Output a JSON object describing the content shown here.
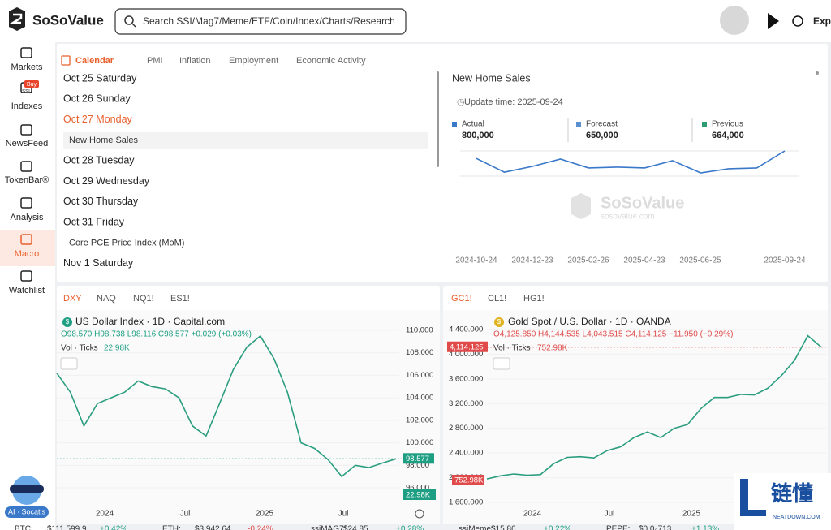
{
  "header": {
    "logo": "SoSoValue",
    "search_placeholder": "Search SSI/Mag7/Meme/ETF/Coin/Index/Charts/Research",
    "right_label": "Expa"
  },
  "sidebar": {
    "items": [
      {
        "label": "Markets"
      },
      {
        "label": "Indexes",
        "badge": "Buy",
        "icon_text": "SSI"
      },
      {
        "label": "NewsFeed"
      },
      {
        "label": "TokenBar®"
      },
      {
        "label": "Analysis"
      },
      {
        "label": "Macro",
        "active": true
      },
      {
        "label": "Watchlist"
      }
    ],
    "assistant": "AI · Socatis"
  },
  "calendar": {
    "tabs": [
      "Calendar",
      "PMI",
      "Inflation",
      "Employment",
      "Economic Activity"
    ],
    "entries": [
      {
        "date": "Oct 25 Saturday"
      },
      {
        "date": "Oct 26 Sunday"
      },
      {
        "date": "Oct 27 Monday",
        "active": true,
        "events": [
          {
            "name": "New Home Sales",
            "selected": true
          }
        ]
      },
      {
        "date": "Oct 28 Tuesday"
      },
      {
        "date": "Oct 29 Wednesday"
      },
      {
        "date": "Oct 30 Thursday"
      },
      {
        "date": "Oct 31 Friday",
        "events": [
          {
            "name": "Core PCE Price Index (MoM)"
          }
        ]
      },
      {
        "date": "Nov 1 Saturday"
      }
    ]
  },
  "detail": {
    "title": "New Home Sales",
    "update": "Update time: 2025-09-24",
    "stats": [
      {
        "label": "Actual",
        "value": "800,000",
        "color": "#3a78c9"
      },
      {
        "label": "Forecast",
        "value": "650,000",
        "color": "#5b8fd0"
      },
      {
        "label": "Previous",
        "value": "664,000",
        "color": "#2e9b73"
      }
    ],
    "watermark": "SoSoValue",
    "watermark_sub": "sosovalue.com",
    "chart": {
      "type": "line",
      "color": "#3a78c9",
      "values": [
        740000,
        630000,
        676000,
        735000,
        664000,
        670000,
        664000,
        722000,
        624000,
        657000,
        664000,
        800000
      ],
      "x_labels": [
        "2024-10-24",
        "2024-12-23",
        "2025-02-26",
        "2025-04-23",
        "2025-06-25",
        "2025-09-24"
      ]
    }
  },
  "panels": [
    {
      "tabs": [
        "DXY",
        "NAQ",
        "NQ1!",
        "ES1!"
      ],
      "badge": "$",
      "title": "US Dollar Index · 1D · Capital.com",
      "ohlc": "O98.570 H98.738 L98.116 C98.577 +0.029 (+0.03%)",
      "volume_label": "Vol · Ticks",
      "volume": "22.98K",
      "price_tag": "98.577",
      "volume_tag": "22.98K",
      "color": "#1e9f83",
      "chart": {
        "type": "line",
        "color": "#2a9d7f",
        "values": [
          106.2,
          104.5,
          101.5,
          103.5,
          104.0,
          104.5,
          105.5,
          105.0,
          104.8,
          104.0,
          101.5,
          100.6,
          103.5,
          106.5,
          108.5,
          109.5,
          107.5,
          104.5,
          100.0,
          99.5,
          98.5,
          97.0,
          98.0,
          97.8,
          98.2,
          98.577
        ],
        "yticks": [
          {
            "value": 110,
            "label": "110.000"
          },
          {
            "value": 108,
            "label": "108.000"
          },
          {
            "value": 106,
            "label": "106.000"
          },
          {
            "value": 104,
            "label": "104.000"
          },
          {
            "value": 102,
            "label": "102.000"
          },
          {
            "value": 100,
            "label": "100.000"
          },
          {
            "value": 98,
            "label": "98.000"
          },
          {
            "value": 96,
            "label": "96.000"
          }
        ],
        "x_labels": [
          "2024",
          "Jul",
          "2025",
          "Jul"
        ]
      }
    },
    {
      "tabs": [
        "GC1!",
        "CL1!",
        "HG1!"
      ],
      "badge": "$",
      "title": "Gold Spot / U.S. Dollar · 1D · OANDA",
      "ohlc": "O4,125.850 H4,144.535 L4,043.515 C4,114.125 −11.950 (−0.29%)",
      "volume_label": "Vol · Ticks",
      "volume": "752.98K",
      "price_tag": "4,114.125",
      "volume_tag": "752.98K",
      "color": "#e04a4a",
      "chart": {
        "type": "line",
        "color": "#2a9d7f",
        "values": [
          1980,
          2030,
          2060,
          2040,
          2050,
          2230,
          2330,
          2340,
          2320,
          2440,
          2500,
          2650,
          2740,
          2650,
          2800,
          2860,
          3120,
          3300,
          3300,
          3350,
          3340,
          3450,
          3650,
          3900,
          4300,
          4114.125
        ],
        "yticks": [
          {
            "value": 4400,
            "label": "4,400.000"
          },
          {
            "value": 4000,
            "label": "4,000.000"
          },
          {
            "value": 3600,
            "label": "3,600.000"
          },
          {
            "value": 3200,
            "label": "3,200.000"
          },
          {
            "value": 2800,
            "label": "2,800.000"
          },
          {
            "value": 2400,
            "label": "2,400.000"
          },
          {
            "value": 2000,
            "label": "2,000.000"
          },
          {
            "value": 1600,
            "label": "1,600.000"
          }
        ],
        "x_labels": [
          "2024",
          "Jul",
          "2025"
        ]
      }
    }
  ],
  "ticker": [
    {
      "symbol": "BTC:",
      "price": "$111,599.9",
      "change": "+0.42%",
      "color": "#1e9f83"
    },
    {
      "symbol": "ETH:",
      "price": "$3,942.64",
      "change": "-0.24%",
      "color": "#e04a4a"
    },
    {
      "symbol": "ssiMAG7:",
      "price": "$24.85",
      "change": "+0.28%",
      "color": "#1e9f83"
    },
    {
      "symbol": "ssiMeme:",
      "price": "$15.86",
      "change": "+0.22%",
      "color": "#1e9f83"
    },
    {
      "symbol": "PEPE:",
      "price": "$0.0₀713",
      "change": "+1.13%",
      "color": "#1e9f83"
    }
  ],
  "watermark": {
    "text": "链懂",
    "sub": "NEATDOWN.COM"
  }
}
